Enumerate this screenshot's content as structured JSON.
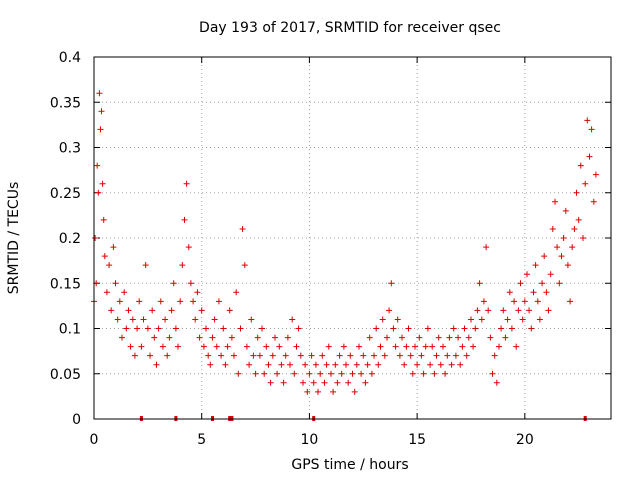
{
  "chart_data": {
    "type": "scatter",
    "title": "Day 193 of 2017, SRMTID for receiver qsec",
    "xlabel": "GPS time / hours",
    "ylabel": "SRMTID / TECUs",
    "xlim": [
      0,
      24
    ],
    "ylim": [
      0,
      0.4
    ],
    "x_ticks": [
      0,
      5,
      10,
      15,
      20
    ],
    "x_tick_labels": [
      "0",
      "5",
      "10",
      "15",
      "20"
    ],
    "y_ticks": [
      0,
      0.05,
      0.1,
      0.15,
      0.2,
      0.25,
      0.3,
      0.35,
      0.4
    ],
    "y_tick_labels": [
      "0",
      "0.05",
      "0.1",
      "0.15",
      "0.2",
      "0.25",
      "0.3",
      "0.35",
      "0.4"
    ],
    "grid": true,
    "marker": "+",
    "series_color": "#e00000",
    "series": [
      {
        "name": "SRMTID",
        "points": [
          [
            0.0,
            0.13
          ],
          [
            0.05,
            0.2
          ],
          [
            0.1,
            0.15
          ],
          [
            0.15,
            0.28
          ],
          [
            0.2,
            0.25
          ],
          [
            0.25,
            0.36
          ],
          [
            0.3,
            0.32
          ],
          [
            0.35,
            0.34
          ],
          [
            0.4,
            0.26
          ],
          [
            0.45,
            0.22
          ],
          [
            0.5,
            0.18
          ],
          [
            0.6,
            0.14
          ],
          [
            0.7,
            0.17
          ],
          [
            0.8,
            0.12
          ],
          [
            0.9,
            0.19
          ],
          [
            1.0,
            0.15
          ],
          [
            1.1,
            0.11
          ],
          [
            1.2,
            0.13
          ],
          [
            1.3,
            0.09
          ],
          [
            1.4,
            0.14
          ],
          [
            1.5,
            0.1
          ],
          [
            1.6,
            0.12
          ],
          [
            1.7,
            0.08
          ],
          [
            1.8,
            0.11
          ],
          [
            1.9,
            0.07
          ],
          [
            2.0,
            0.1
          ],
          [
            2.1,
            0.13
          ],
          [
            2.2,
            0.08
          ],
          [
            2.3,
            0.11
          ],
          [
            2.4,
            0.17
          ],
          [
            2.5,
            0.1
          ],
          [
            2.6,
            0.07
          ],
          [
            2.7,
            0.12
          ],
          [
            2.8,
            0.09
          ],
          [
            2.9,
            0.06
          ],
          [
            3.0,
            0.1
          ],
          [
            3.1,
            0.13
          ],
          [
            3.2,
            0.08
          ],
          [
            3.3,
            0.11
          ],
          [
            3.4,
            0.07
          ],
          [
            3.5,
            0.09
          ],
          [
            3.6,
            0.12
          ],
          [
            3.7,
            0.15
          ],
          [
            3.8,
            0.1
          ],
          [
            3.9,
            0.08
          ],
          [
            4.0,
            0.13
          ],
          [
            4.1,
            0.17
          ],
          [
            4.2,
            0.22
          ],
          [
            4.3,
            0.26
          ],
          [
            4.4,
            0.19
          ],
          [
            4.5,
            0.15
          ],
          [
            4.6,
            0.13
          ],
          [
            4.7,
            0.11
          ],
          [
            4.8,
            0.14
          ],
          [
            4.9,
            0.09
          ],
          [
            5.0,
            0.12
          ],
          [
            5.1,
            0.08
          ],
          [
            5.2,
            0.1
          ],
          [
            5.3,
            0.07
          ],
          [
            5.4,
            0.06
          ],
          [
            5.5,
            0.09
          ],
          [
            5.6,
            0.11
          ],
          [
            5.7,
            0.08
          ],
          [
            5.8,
            0.13
          ],
          [
            5.9,
            0.07
          ],
          [
            6.0,
            0.1
          ],
          [
            6.1,
            0.06
          ],
          [
            6.2,
            0.08
          ],
          [
            6.3,
            0.12
          ],
          [
            6.4,
            0.09
          ],
          [
            6.5,
            0.07
          ],
          [
            6.6,
            0.14
          ],
          [
            6.7,
            0.05
          ],
          [
            6.8,
            0.1
          ],
          [
            6.9,
            0.21
          ],
          [
            7.0,
            0.17
          ],
          [
            7.1,
            0.08
          ],
          [
            7.2,
            0.06
          ],
          [
            7.3,
            0.11
          ],
          [
            7.4,
            0.07
          ],
          [
            7.5,
            0.05
          ],
          [
            7.6,
            0.09
          ],
          [
            7.7,
            0.07
          ],
          [
            7.8,
            0.1
          ],
          [
            7.9,
            0.05
          ],
          [
            8.0,
            0.08
          ],
          [
            8.1,
            0.06
          ],
          [
            8.2,
            0.04
          ],
          [
            8.3,
            0.07
          ],
          [
            8.4,
            0.09
          ],
          [
            8.5,
            0.05
          ],
          [
            8.6,
            0.08
          ],
          [
            8.7,
            0.06
          ],
          [
            8.8,
            0.04
          ],
          [
            8.9,
            0.07
          ],
          [
            9.0,
            0.09
          ],
          [
            9.1,
            0.06
          ],
          [
            9.2,
            0.11
          ],
          [
            9.3,
            0.05
          ],
          [
            9.4,
            0.08
          ],
          [
            9.5,
            0.1
          ],
          [
            9.6,
            0.07
          ],
          [
            9.7,
            0.04
          ],
          [
            9.8,
            0.06
          ],
          [
            9.9,
            0.03
          ],
          [
            10.0,
            0.05
          ],
          [
            10.1,
            0.07
          ],
          [
            10.2,
            0.04
          ],
          [
            10.3,
            0.06
          ],
          [
            10.4,
            0.03
          ],
          [
            10.5,
            0.05
          ],
          [
            10.6,
            0.07
          ],
          [
            10.7,
            0.04
          ],
          [
            10.8,
            0.06
          ],
          [
            10.9,
            0.08
          ],
          [
            11.0,
            0.05
          ],
          [
            11.1,
            0.03
          ],
          [
            11.2,
            0.06
          ],
          [
            11.3,
            0.04
          ],
          [
            11.4,
            0.07
          ],
          [
            11.5,
            0.05
          ],
          [
            11.6,
            0.08
          ],
          [
            11.7,
            0.06
          ],
          [
            11.8,
            0.04
          ],
          [
            11.9,
            0.07
          ],
          [
            12.0,
            0.05
          ],
          [
            12.1,
            0.03
          ],
          [
            12.2,
            0.06
          ],
          [
            12.3,
            0.08
          ],
          [
            12.4,
            0.05
          ],
          [
            12.5,
            0.07
          ],
          [
            12.6,
            0.04
          ],
          [
            12.7,
            0.06
          ],
          [
            12.8,
            0.09
          ],
          [
            12.9,
            0.05
          ],
          [
            13.0,
            0.07
          ],
          [
            13.1,
            0.1
          ],
          [
            13.2,
            0.06
          ],
          [
            13.3,
            0.08
          ],
          [
            13.4,
            0.11
          ],
          [
            13.5,
            0.07
          ],
          [
            13.6,
            0.09
          ],
          [
            13.7,
            0.12
          ],
          [
            13.8,
            0.15
          ],
          [
            13.9,
            0.1
          ],
          [
            14.0,
            0.08
          ],
          [
            14.1,
            0.11
          ],
          [
            14.2,
            0.07
          ],
          [
            14.3,
            0.09
          ],
          [
            14.4,
            0.06
          ],
          [
            14.5,
            0.08
          ],
          [
            14.6,
            0.1
          ],
          [
            14.7,
            0.07
          ],
          [
            14.8,
            0.05
          ],
          [
            14.9,
            0.08
          ],
          [
            15.0,
            0.06
          ],
          [
            15.1,
            0.09
          ],
          [
            15.2,
            0.07
          ],
          [
            15.3,
            0.05
          ],
          [
            15.4,
            0.08
          ],
          [
            15.5,
            0.1
          ],
          [
            15.6,
            0.06
          ],
          [
            15.7,
            0.08
          ],
          [
            15.8,
            0.05
          ],
          [
            15.9,
            0.07
          ],
          [
            16.0,
            0.09
          ],
          [
            16.1,
            0.06
          ],
          [
            16.2,
            0.08
          ],
          [
            16.3,
            0.05
          ],
          [
            16.4,
            0.07
          ],
          [
            16.5,
            0.09
          ],
          [
            16.6,
            0.06
          ],
          [
            16.7,
            0.1
          ],
          [
            16.8,
            0.07
          ],
          [
            16.9,
            0.09
          ],
          [
            17.0,
            0.06
          ],
          [
            17.1,
            0.08
          ],
          [
            17.2,
            0.1
          ],
          [
            17.3,
            0.07
          ],
          [
            17.4,
            0.09
          ],
          [
            17.5,
            0.11
          ],
          [
            17.6,
            0.08
          ],
          [
            17.7,
            0.1
          ],
          [
            17.8,
            0.12
          ],
          [
            17.9,
            0.15
          ],
          [
            18.0,
            0.11
          ],
          [
            18.1,
            0.13
          ],
          [
            18.2,
            0.19
          ],
          [
            18.3,
            0.12
          ],
          [
            18.4,
            0.09
          ],
          [
            18.5,
            0.05
          ],
          [
            18.6,
            0.07
          ],
          [
            18.7,
            0.04
          ],
          [
            18.8,
            0.08
          ],
          [
            18.9,
            0.1
          ],
          [
            19.0,
            0.12
          ],
          [
            19.1,
            0.09
          ],
          [
            19.2,
            0.11
          ],
          [
            19.3,
            0.14
          ],
          [
            19.4,
            0.1
          ],
          [
            19.5,
            0.13
          ],
          [
            19.6,
            0.08
          ],
          [
            19.7,
            0.12
          ],
          [
            19.8,
            0.15
          ],
          [
            19.9,
            0.11
          ],
          [
            20.0,
            0.13
          ],
          [
            20.1,
            0.16
          ],
          [
            20.2,
            0.12
          ],
          [
            20.3,
            0.1
          ],
          [
            20.4,
            0.14
          ],
          [
            20.5,
            0.17
          ],
          [
            20.6,
            0.13
          ],
          [
            20.7,
            0.11
          ],
          [
            20.8,
            0.15
          ],
          [
            20.9,
            0.18
          ],
          [
            21.0,
            0.14
          ],
          [
            21.1,
            0.12
          ],
          [
            21.2,
            0.16
          ],
          [
            21.3,
            0.21
          ],
          [
            21.4,
            0.24
          ],
          [
            21.5,
            0.19
          ],
          [
            21.6,
            0.15
          ],
          [
            21.7,
            0.18
          ],
          [
            21.8,
            0.2
          ],
          [
            21.9,
            0.23
          ],
          [
            22.0,
            0.17
          ],
          [
            22.1,
            0.13
          ],
          [
            22.2,
            0.19
          ],
          [
            22.3,
            0.21
          ],
          [
            22.4,
            0.25
          ],
          [
            22.5,
            0.22
          ],
          [
            22.6,
            0.28
          ],
          [
            22.7,
            0.2
          ],
          [
            22.8,
            0.26
          ],
          [
            22.9,
            0.33
          ],
          [
            23.0,
            0.29
          ],
          [
            23.1,
            0.32
          ],
          [
            23.2,
            0.24
          ],
          [
            23.3,
            0.27
          ]
        ]
      }
    ],
    "baseline_markers_x": [
      2.2,
      3.8,
      5.5,
      6.3,
      6.4,
      10.2,
      22.8
    ]
  }
}
